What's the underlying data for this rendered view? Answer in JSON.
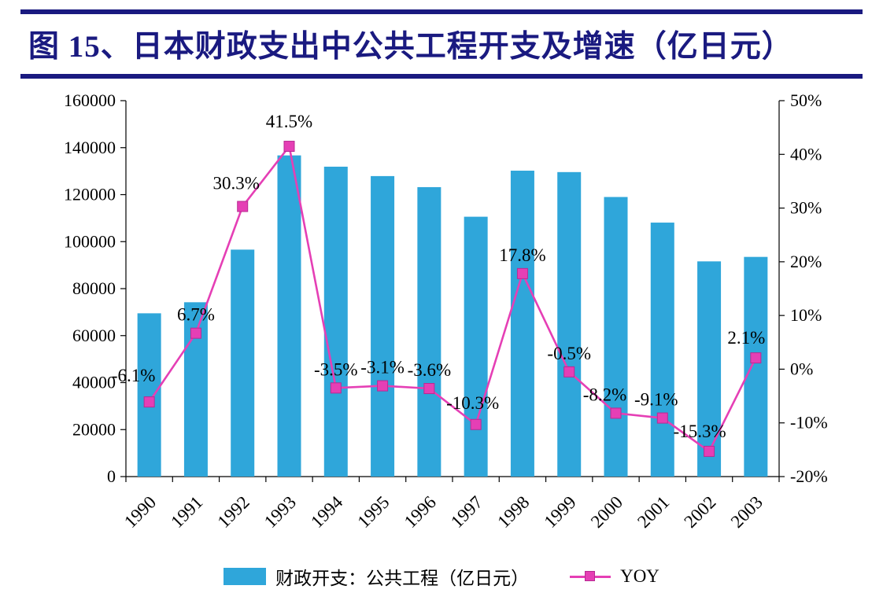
{
  "figure": {
    "title": "图 15、日本财政支出中公共工程开支及增速（亿日元）",
    "accent_color": "#1a1a80"
  },
  "chart_data": {
    "type": "combo",
    "title": "图 15、日本财政支出中公共工程开支及增速（亿日元）",
    "categories": [
      "1990",
      "1991",
      "1992",
      "1993",
      "1994",
      "1995",
      "1996",
      "1997",
      "1998",
      "1999",
      "2000",
      "2001",
      "2002",
      "2003"
    ],
    "series": [
      {
        "name": "财政开支：公共工程（亿日元）",
        "type": "bar",
        "axis": "left",
        "color": "#2fa6da",
        "values": [
          69500,
          74200,
          96600,
          136700,
          131900,
          127900,
          123200,
          110600,
          130200,
          129600,
          119000,
          108100,
          91600,
          93500
        ]
      },
      {
        "name": "YOY",
        "type": "line",
        "axis": "right",
        "color": "#e53fb5",
        "marker_edge": "#b82a92",
        "values": [
          -6.1,
          6.7,
          30.3,
          41.5,
          -3.5,
          -3.1,
          -3.6,
          -10.3,
          17.8,
          -0.5,
          -8.2,
          -9.1,
          -15.3,
          2.1
        ],
        "point_labels": [
          "-6.1%",
          "6.7%",
          "30.3%",
          "41.5%",
          "-3.5%",
          "-3.1%",
          "-3.6%",
          "-10.3%",
          "17.8%",
          "-0.5%",
          "-8.2%",
          "-9.1%",
          "-15.3%",
          "2.1%"
        ]
      }
    ],
    "left_axis": {
      "min": 0,
      "max": 160000,
      "step": 20000,
      "tick_labels": [
        "0",
        "20000",
        "40000",
        "60000",
        "80000",
        "100000",
        "120000",
        "140000",
        "160000"
      ]
    },
    "right_axis": {
      "min": -20,
      "max": 50,
      "step": 10,
      "tick_labels": [
        "-20%",
        "-10%",
        "0%",
        "10%",
        "20%",
        "30%",
        "40%",
        "50%"
      ]
    },
    "legend_position": "bottom",
    "grid": false
  }
}
